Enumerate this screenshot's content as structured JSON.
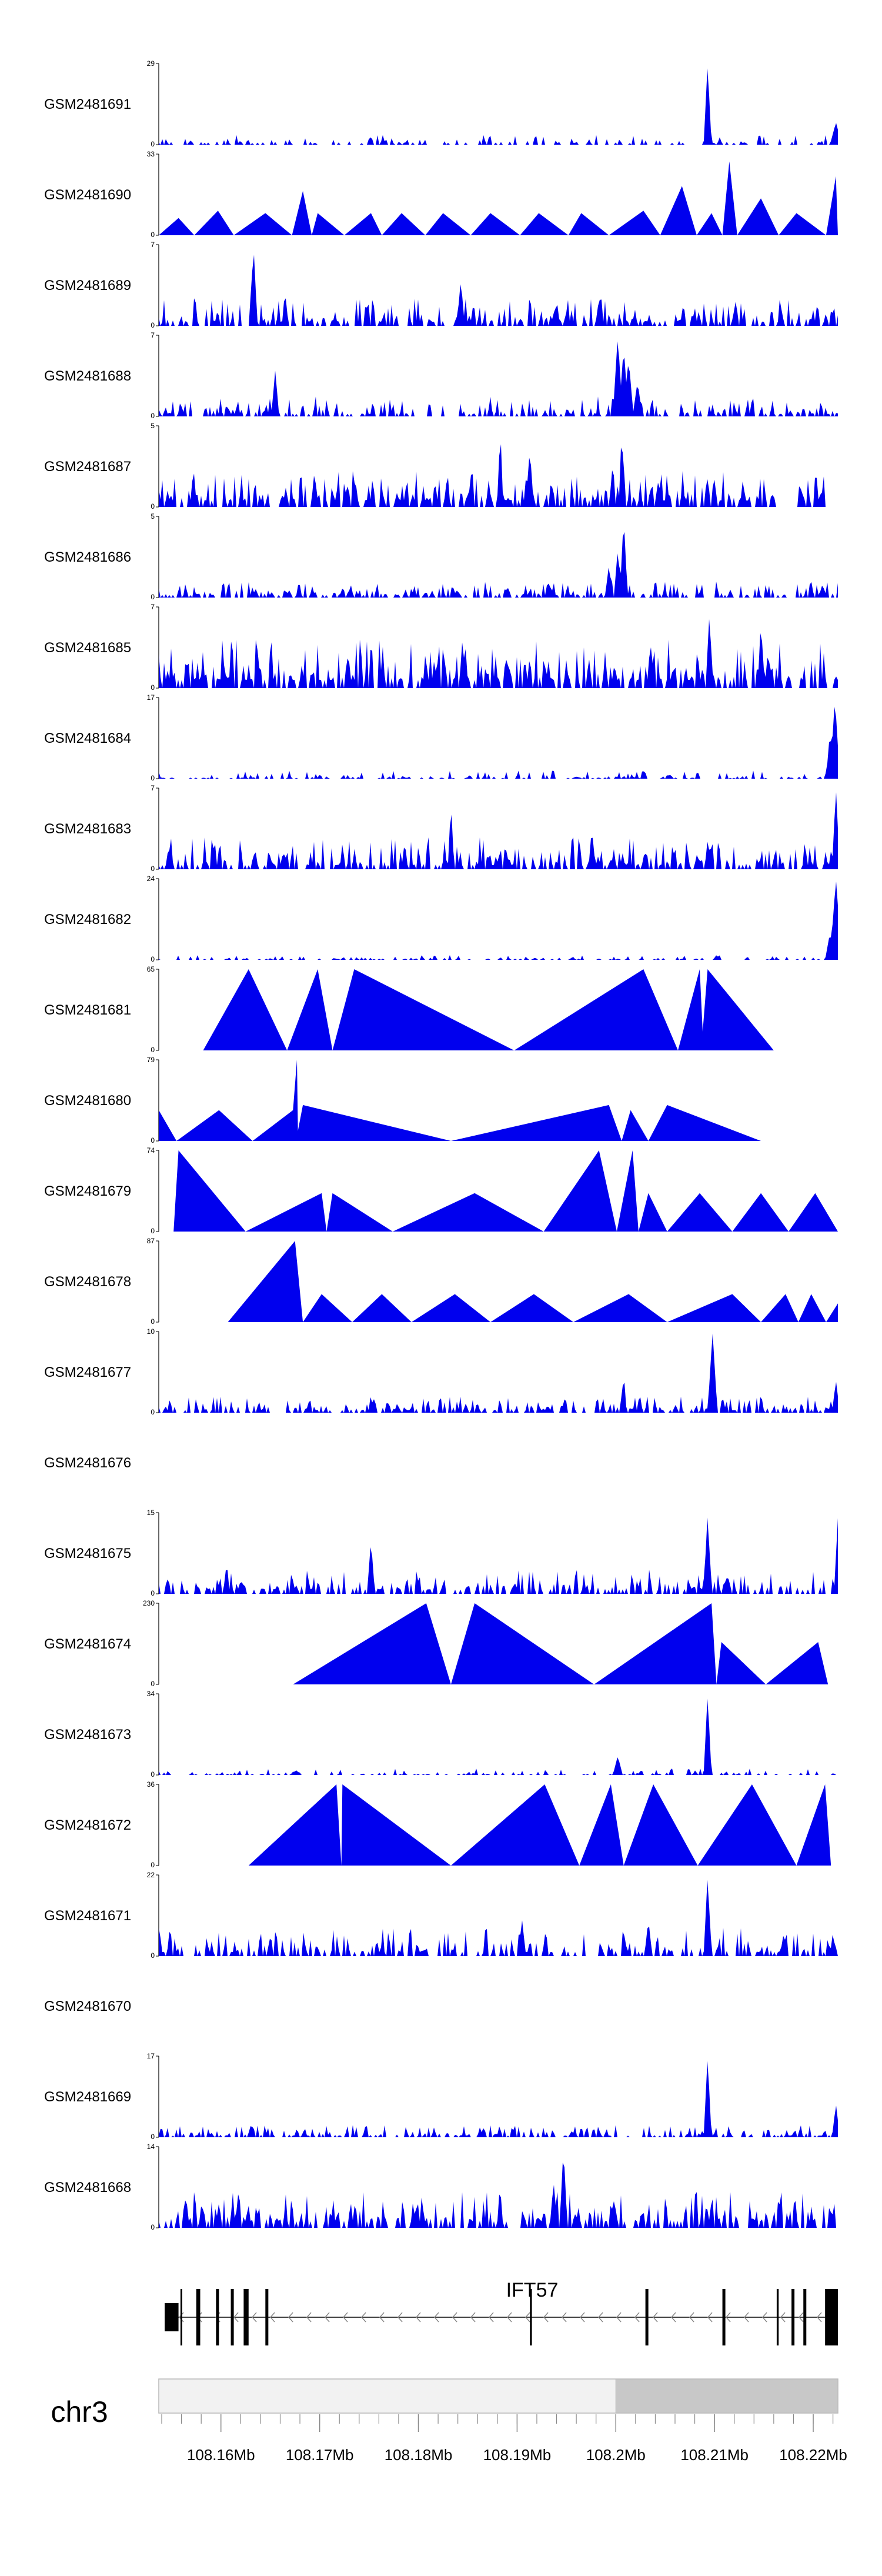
{
  "chart_data": {
    "type": "genome-browser-coverage-tracks",
    "chromosome": "chr3",
    "xlim_mb": [
      108.1537,
      108.2225
    ],
    "x_ticks": [
      "108.16Mb",
      "108.17Mb",
      "108.18Mb",
      "108.19Mb",
      "108.2Mb",
      "108.21Mb",
      "108.22Mb"
    ],
    "x_tick_values_mb": [
      108.16,
      108.17,
      108.18,
      108.19,
      108.2,
      108.21,
      108.22
    ],
    "gene": {
      "name": "IFT57",
      "strand": "-",
      "start_mb": 108.1543,
      "end_mb": 108.2225,
      "exons_mb": [
        [
          108.1543,
          108.1557
        ],
        [
          108.1575,
          108.1579
        ],
        [
          108.1595,
          108.1598
        ],
        [
          108.161,
          108.1613
        ],
        [
          108.1623,
          108.1628
        ],
        [
          108.1645,
          108.1648
        ],
        [
          108.1913,
          108.1915
        ],
        [
          108.203,
          108.2033
        ],
        [
          108.2108,
          108.2111
        ],
        [
          108.2163,
          108.2165
        ],
        [
          108.2178,
          108.2181
        ],
        [
          108.219,
          108.2193
        ],
        [
          108.2212,
          108.2225
        ]
      ]
    },
    "ideogram_highlight_mb": [
      108.2,
      108.2225
    ],
    "series": [
      {
        "name": "GSM2481691",
        "ymax": 29,
        "style": "spiky",
        "seed": 11,
        "density": 0.35,
        "low": 0.02,
        "high": 0.12,
        "start_mb": 108.1537,
        "end_mb": 108.2225,
        "peaks": [
          [
            108.2093,
            29,
            0.0004
          ],
          [
            108.2223,
            8,
            0.0006
          ]
        ]
      },
      {
        "name": "GSM2481690",
        "ymax": 33,
        "style": "tri",
        "seed": 12,
        "points": [
          [
            108.1537,
            0
          ],
          [
            108.1557,
            7
          ],
          [
            108.1573,
            0
          ],
          [
            108.1597,
            10
          ],
          [
            108.1613,
            0
          ],
          [
            108.1645,
            9
          ],
          [
            108.1672,
            0
          ],
          [
            108.1683,
            18
          ],
          [
            108.1692,
            0
          ],
          [
            108.1698,
            9
          ],
          [
            108.1725,
            0
          ],
          [
            108.1752,
            9
          ],
          [
            108.1763,
            0
          ],
          [
            108.1783,
            9
          ],
          [
            108.1807,
            0
          ],
          [
            108.1825,
            9
          ],
          [
            108.1853,
            0
          ],
          [
            108.1873,
            9
          ],
          [
            108.1903,
            0
          ],
          [
            108.1922,
            9
          ],
          [
            108.1952,
            0
          ],
          [
            108.1965,
            9
          ],
          [
            108.1993,
            0
          ],
          [
            108.2028,
            10
          ],
          [
            108.2045,
            0
          ],
          [
            108.2067,
            20
          ],
          [
            108.2082,
            0
          ],
          [
            108.2097,
            9
          ],
          [
            108.2108,
            0
          ],
          [
            108.2115,
            30
          ],
          [
            108.2123,
            0
          ],
          [
            108.2147,
            15
          ],
          [
            108.2165,
            0
          ],
          [
            108.2183,
            9
          ],
          [
            108.2213,
            0
          ],
          [
            108.2223,
            24
          ],
          [
            108.2225,
            0
          ]
        ]
      },
      {
        "name": "GSM2481689",
        "ymax": 7,
        "style": "spiky",
        "seed": 13,
        "density": 0.55,
        "low": 0.05,
        "high": 0.35,
        "start_mb": 108.1537,
        "end_mb": 108.2225,
        "peaks": [
          [
            108.1633,
            7,
            0.0004
          ],
          [
            108.1843,
            4,
            0.0004
          ]
        ]
      },
      {
        "name": "GSM2481688",
        "ymax": 7,
        "style": "spiky",
        "seed": 14,
        "density": 0.5,
        "low": 0.03,
        "high": 0.25,
        "start_mb": 108.1537,
        "end_mb": 108.2225,
        "peaks": [
          [
            108.1655,
            4,
            0.0004
          ],
          [
            108.2002,
            7,
            0.0005
          ],
          [
            108.2008,
            6,
            0.0005
          ],
          [
            108.2013,
            5,
            0.0005
          ],
          [
            108.2022,
            3,
            0.0005
          ]
        ]
      },
      {
        "name": "GSM2481687",
        "ymax": 5,
        "style": "spiky",
        "seed": 15,
        "density": 0.6,
        "low": 0.08,
        "high": 0.45,
        "start_mb": 108.1537,
        "end_mb": 108.2215,
        "peaks": [
          [
            108.1883,
            5,
            0.0003
          ],
          [
            108.1913,
            4,
            0.0003
          ],
          [
            108.2006,
            5,
            0.0003
          ],
          [
            108.1997,
            3,
            0.0003
          ]
        ]
      },
      {
        "name": "GSM2481686",
        "ymax": 5,
        "style": "spiky",
        "seed": 16,
        "density": 0.55,
        "low": 0.03,
        "high": 0.2,
        "start_mb": 108.1537,
        "end_mb": 108.2225,
        "peaks": [
          [
            108.2008,
            5,
            0.0004
          ],
          [
            108.2002,
            3,
            0.0004
          ],
          [
            108.1993,
            2,
            0.0004
          ]
        ]
      },
      {
        "name": "GSM2481685",
        "ymax": 7,
        "style": "spiky",
        "seed": 17,
        "density": 0.7,
        "low": 0.1,
        "high": 0.6,
        "start_mb": 108.1537,
        "end_mb": 108.2225,
        "peaks": [
          [
            108.2095,
            7,
            0.0003
          ],
          [
            108.2147,
            6,
            0.0003
          ]
        ]
      },
      {
        "name": "GSM2481684",
        "ymax": 17,
        "style": "spiky",
        "seed": 18,
        "density": 0.4,
        "low": 0.01,
        "high": 0.1,
        "start_mb": 108.1537,
        "end_mb": 108.2225,
        "peaks": [
          [
            108.2222,
            17,
            0.0005
          ],
          [
            108.2217,
            10,
            0.0004
          ]
        ]
      },
      {
        "name": "GSM2481683",
        "ymax": 7,
        "style": "spiky",
        "seed": 19,
        "density": 0.6,
        "low": 0.05,
        "high": 0.4,
        "start_mb": 108.1537,
        "end_mb": 108.2225,
        "peaks": [
          [
            108.1833,
            6,
            0.0003
          ],
          [
            108.2223,
            7,
            0.0004
          ]
        ]
      },
      {
        "name": "GSM2481682",
        "ymax": 24,
        "style": "spiky",
        "seed": 20,
        "density": 0.35,
        "low": 0.01,
        "high": 0.06,
        "start_mb": 108.1537,
        "end_mb": 108.2225,
        "peaks": [
          [
            108.2223,
            24,
            0.0006
          ],
          [
            108.2217,
            8,
            0.0005
          ]
        ]
      },
      {
        "name": "GSM2481681",
        "ymax": 65,
        "style": "tri",
        "seed": 21,
        "points": [
          [
            108.1582,
            0
          ],
          [
            108.1628,
            65
          ],
          [
            108.1667,
            0
          ],
          [
            108.1698,
            65
          ],
          [
            108.1713,
            0
          ],
          [
            108.1735,
            65
          ],
          [
            108.1897,
            0
          ],
          [
            108.2028,
            65
          ],
          [
            108.2063,
            0
          ],
          [
            108.2085,
            65
          ],
          [
            108.2088,
            15
          ],
          [
            108.2093,
            65
          ],
          [
            108.216,
            0
          ]
        ]
      },
      {
        "name": "GSM2481680",
        "ymax": 79,
        "style": "tri",
        "seed": 22,
        "points": [
          [
            108.1537,
            30
          ],
          [
            108.1555,
            0
          ],
          [
            108.1598,
            30
          ],
          [
            108.1632,
            0
          ],
          [
            108.1673,
            30
          ],
          [
            108.1677,
            79
          ],
          [
            108.1678,
            10
          ],
          [
            108.1683,
            35
          ],
          [
            108.1833,
            0
          ],
          [
            108.1993,
            35
          ],
          [
            108.2006,
            0
          ],
          [
            108.2015,
            30
          ],
          [
            108.2033,
            0
          ],
          [
            108.2052,
            35
          ],
          [
            108.2147,
            0
          ]
        ]
      },
      {
        "name": "GSM2481679",
        "ymax": 74,
        "style": "tri",
        "seed": 23,
        "points": [
          [
            108.1552,
            0
          ],
          [
            108.1557,
            74
          ],
          [
            108.1625,
            0
          ],
          [
            108.1702,
            35
          ],
          [
            108.1707,
            0
          ],
          [
            108.1713,
            35
          ],
          [
            108.1774,
            0
          ],
          [
            108.1857,
            35
          ],
          [
            108.1927,
            0
          ],
          [
            108.1983,
            74
          ],
          [
            108.2001,
            0
          ],
          [
            108.2017,
            74
          ],
          [
            108.2023,
            0
          ],
          [
            108.2033,
            35
          ],
          [
            108.2052,
            0
          ],
          [
            108.2085,
            35
          ],
          [
            108.2118,
            0
          ],
          [
            108.2147,
            35
          ],
          [
            108.2175,
            0
          ],
          [
            108.2202,
            35
          ],
          [
            108.2225,
            0
          ]
        ]
      },
      {
        "name": "GSM2481678",
        "ymax": 87,
        "style": "tri",
        "seed": 24,
        "points": [
          [
            108.1607,
            0
          ],
          [
            108.1675,
            87
          ],
          [
            108.1683,
            0
          ],
          [
            108.1702,
            30
          ],
          [
            108.1733,
            0
          ],
          [
            108.1763,
            30
          ],
          [
            108.1793,
            0
          ],
          [
            108.1837,
            30
          ],
          [
            108.1873,
            0
          ],
          [
            108.1917,
            30
          ],
          [
            108.1957,
            0
          ],
          [
            108.2013,
            30
          ],
          [
            108.2052,
            0
          ],
          [
            108.2118,
            30
          ],
          [
            108.2147,
            0
          ],
          [
            108.2172,
            30
          ],
          [
            108.2185,
            0
          ],
          [
            108.2198,
            30
          ],
          [
            108.2213,
            0
          ],
          [
            108.2225,
            20
          ]
        ]
      },
      {
        "name": "GSM2481677",
        "ymax": 10,
        "style": "spiky",
        "seed": 25,
        "density": 0.55,
        "low": 0.03,
        "high": 0.2,
        "start_mb": 108.1537,
        "end_mb": 108.2225,
        "peaks": [
          [
            108.2098,
            10,
            0.0005
          ],
          [
            108.2008,
            5,
            0.0003
          ],
          [
            108.2223,
            4,
            0.0004
          ]
        ]
      },
      {
        "name": "GSM2481676",
        "ymax": 0,
        "style": "empty"
      },
      {
        "name": "GSM2481675",
        "ymax": 15,
        "style": "spiky",
        "seed": 26,
        "density": 0.5,
        "low": 0.05,
        "high": 0.3,
        "start_mb": 108.1537,
        "end_mb": 108.2225,
        "peaks": [
          [
            108.1752,
            10,
            0.0004
          ],
          [
            108.2093,
            15,
            0.0004
          ],
          [
            108.2225,
            14,
            0.0004
          ]
        ]
      },
      {
        "name": "GSM2481674",
        "ymax": 230,
        "style": "tri",
        "seed": 27,
        "points": [
          [
            108.1673,
            0
          ],
          [
            108.1808,
            230
          ],
          [
            108.1833,
            0
          ],
          [
            108.1857,
            230
          ],
          [
            108.1978,
            0
          ],
          [
            108.2097,
            230
          ],
          [
            108.2102,
            0
          ],
          [
            108.2107,
            120
          ],
          [
            108.2152,
            0
          ],
          [
            108.2205,
            120
          ],
          [
            108.2215,
            0
          ]
        ]
      },
      {
        "name": "GSM2481673",
        "ymax": 34,
        "style": "spiky",
        "seed": 28,
        "density": 0.3,
        "low": 0.01,
        "high": 0.08,
        "start_mb": 108.1537,
        "end_mb": 108.2225,
        "peaks": [
          [
            108.2093,
            34,
            0.0004
          ],
          [
            108.2002,
            8,
            0.0005
          ]
        ]
      },
      {
        "name": "GSM2481672",
        "ymax": 36,
        "style": "tri",
        "seed": 29,
        "points": [
          [
            108.1628,
            0
          ],
          [
            108.1717,
            36
          ],
          [
            108.1722,
            0
          ],
          [
            108.1723,
            36
          ],
          [
            108.1833,
            0
          ],
          [
            108.1928,
            36
          ],
          [
            108.1963,
            0
          ],
          [
            108.1995,
            36
          ],
          [
            108.2008,
            0
          ],
          [
            108.2038,
            36
          ],
          [
            108.2083,
            0
          ],
          [
            108.2138,
            36
          ],
          [
            108.2183,
            0
          ],
          [
            108.2212,
            36
          ],
          [
            108.2218,
            0
          ]
        ]
      },
      {
        "name": "GSM2481671",
        "ymax": 22,
        "style": "spiky",
        "seed": 30,
        "density": 0.45,
        "low": 0.05,
        "high": 0.35,
        "start_mb": 108.1537,
        "end_mb": 108.2225,
        "peaks": [
          [
            108.2093,
            22,
            0.0004
          ],
          [
            108.1905,
            10,
            0.0004
          ],
          [
            108.2033,
            10,
            0.0004
          ]
        ]
      },
      {
        "name": "GSM2481670",
        "ymax": 0,
        "style": "empty"
      },
      {
        "name": "GSM2481669",
        "ymax": 17,
        "style": "spiky",
        "seed": 31,
        "density": 0.5,
        "low": 0.02,
        "high": 0.15,
        "start_mb": 108.1537,
        "end_mb": 108.2225,
        "peaks": [
          [
            108.2093,
            17,
            0.0004
          ],
          [
            108.2223,
            7,
            0.0004
          ]
        ]
      },
      {
        "name": "GSM2481668",
        "ymax": 14,
        "style": "spiky",
        "seed": 32,
        "density": 0.6,
        "low": 0.08,
        "high": 0.45,
        "start_mb": 108.1537,
        "end_mb": 108.2225,
        "peaks": [
          [
            108.1947,
            14,
            0.0004
          ],
          [
            108.1937,
            8,
            0.0004
          ]
        ]
      }
    ]
  },
  "colors": {
    "coverage_fill": "#0000ee",
    "axis": "#000000",
    "ideogram_fill": "#f2f2f2",
    "ideogram_highlight": "#c8c8c8",
    "ideogram_border": "#b8b8b8",
    "tick": "#888888",
    "gene": "#000000",
    "intron_arrows": "#888888"
  }
}
